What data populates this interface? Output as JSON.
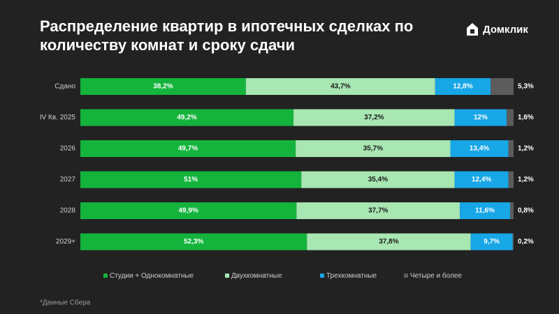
{
  "brand": "Домклик",
  "chart_data": {
    "type": "bar",
    "orientation": "horizontal",
    "stacked": true,
    "title": "Распределение квартир в ипотечных сделках по количеству комнат и сроку сдачи",
    "categories": [
      "Сдано",
      "IV Кв. 2025",
      "2026",
      "2027",
      "2028",
      "2029+"
    ],
    "xlim": [
      0,
      100
    ],
    "series": [
      {
        "name": "Студии + Однокомнатные",
        "color": "#14b43c",
        "values": [
          38.2,
          49.2,
          49.7,
          51,
          49.9,
          52.3
        ],
        "value_labels": [
          "38,2%",
          "49,2%",
          "49,7%",
          "51%",
          "49,9%",
          "52,3%"
        ]
      },
      {
        "name": "Двухкомнатные",
        "color": "#a8e6b2",
        "values": [
          43.7,
          37.2,
          35.7,
          35.4,
          37.7,
          37.8
        ],
        "value_labels": [
          "43,7%",
          "37,2%",
          "35,7%",
          "35,4%",
          "37,7%",
          "37,8%"
        ]
      },
      {
        "name": "Трехкомнатные",
        "color": "#17a6e6",
        "values": [
          12.8,
          12,
          13.4,
          12.4,
          11.6,
          9.7
        ],
        "value_labels": [
          "12,8%",
          "12%",
          "13,4%",
          "12,4%",
          "11,6%",
          "9,7%"
        ]
      },
      {
        "name": "Четыре и более",
        "color": "#5c5c5c",
        "values": [
          5.3,
          1.6,
          1.2,
          1.2,
          0.8,
          0.2
        ],
        "value_labels": [
          "5,3%",
          "1,6%",
          "1,2%",
          "1,2%",
          "0,8%",
          "0,2%"
        ]
      }
    ],
    "legend": "bottom",
    "footnote": "*Данные Сбера"
  }
}
